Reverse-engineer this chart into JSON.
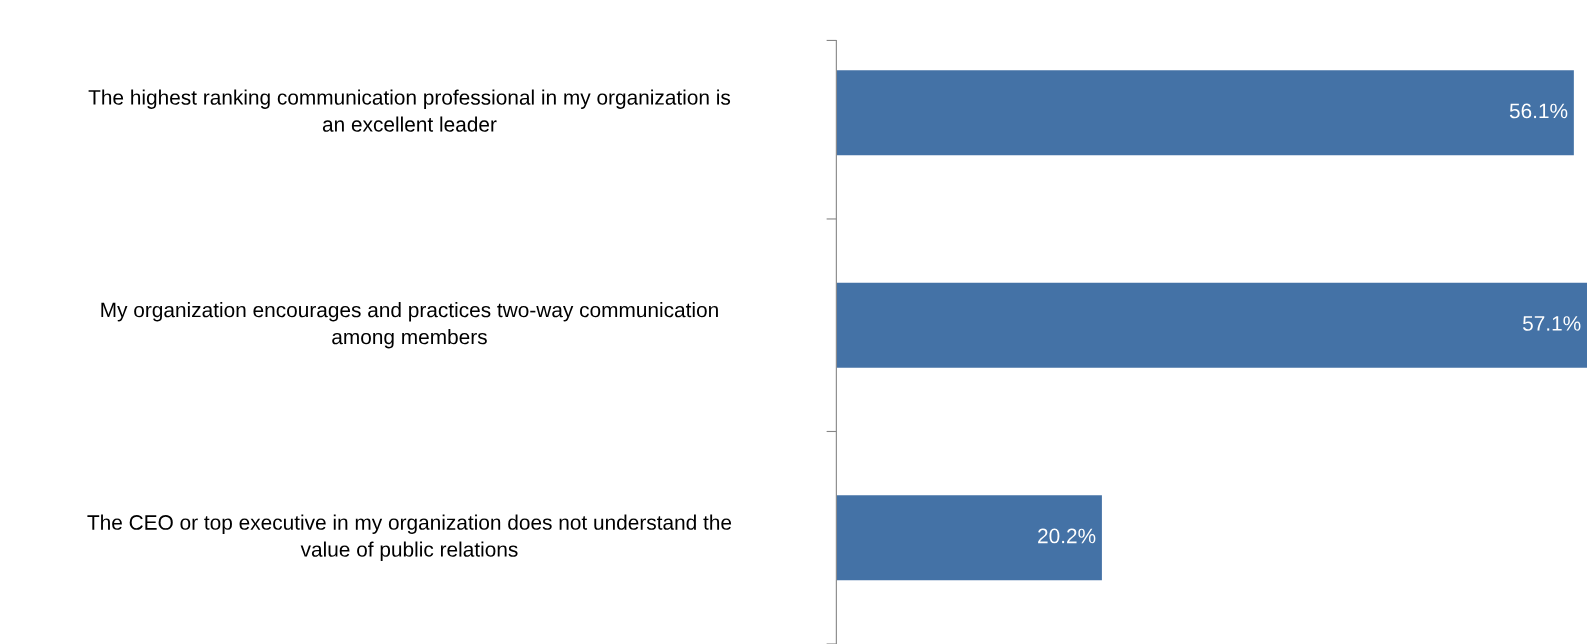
{
  "chart_data": {
    "type": "bar",
    "orientation": "horizontal",
    "categories": [
      "The highest ranking communication professional in my organization is\nan excellent leader",
      "My organization encourages and practices two-way communication\namong members",
      "The CEO or top executive in my organization does not understand the\nvalue of public relations"
    ],
    "values": [
      56.1,
      57.1,
      20.2
    ],
    "value_labels": [
      "56.1%",
      "57.1%",
      "20.2%"
    ],
    "color": "#4472a6",
    "grid": false,
    "legend": false
  }
}
